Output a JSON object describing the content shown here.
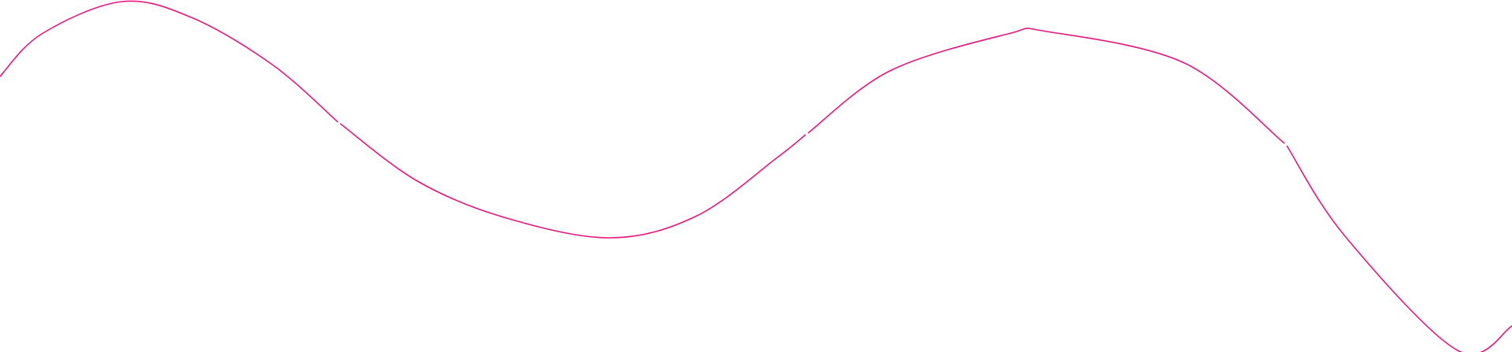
{
  "decoration": {
    "type": "wavy-line",
    "stroke_color": "#e8177e",
    "background_color": "#ffffff"
  }
}
